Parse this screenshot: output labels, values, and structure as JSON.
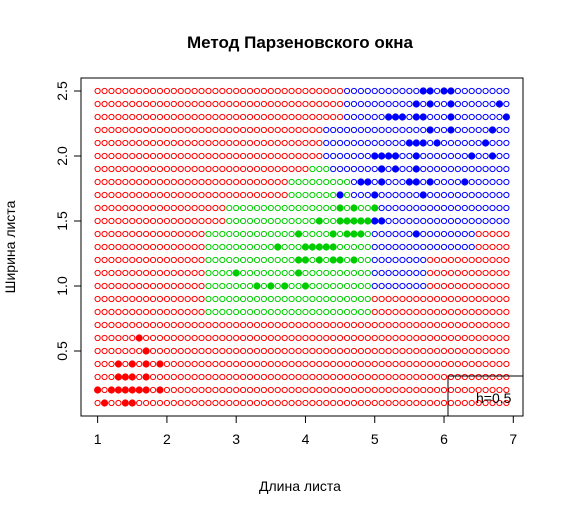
{
  "chart_data": {
    "type": "scatter",
    "title": "Метод Парзеновского окна",
    "xlabel": "Длина листа",
    "ylabel": "Ширина листа",
    "xlim": [
      0.76,
      7.14
    ],
    "ylim": [
      0.0,
      2.6
    ],
    "xticks": [
      "1",
      "2",
      "3",
      "4",
      "5",
      "6",
      "7"
    ],
    "yticks": [
      "0.5",
      "1.0",
      "1.5",
      "2.0",
      "2.5"
    ],
    "grid": false,
    "legend": {
      "position": "bottom-right",
      "text": "h=0.5"
    },
    "colors": {
      "setosa": "#ff0000",
      "versicolor": "#00cd00",
      "virginica": "#0000ff"
    },
    "classification_grid": {
      "x_start": 1.0,
      "x_step": 0.1,
      "x_count": 60,
      "y_start": 0.1,
      "y_step": 0.1,
      "y_count": 25,
      "point_style": "open-circle",
      "regions": [
        {
          "class": "versicolor",
          "y_from": 0.8,
          "y_to": 1.0,
          "x_from": 3.0,
          "x_to": 4.4
        },
        {
          "class": "versicolor",
          "y_from": 0.8,
          "y_to": 1.0,
          "x_from": 2.6,
          "x_to": 4.9
        },
        {
          "class": "versicolor",
          "y_from": 1.1,
          "y_to": 1.4,
          "x_from": 2.6,
          "x_to": 4.3
        },
        {
          "class": "versicolor",
          "y_from": 1.5,
          "y_to": 1.6,
          "x_from": 2.9,
          "x_to": 4.3
        },
        {
          "class": "versicolor",
          "y_from": 1.7,
          "y_to": 1.8,
          "x_from": 3.8,
          "x_to": 4.3
        },
        {
          "class": "versicolor",
          "y_from": 1.9,
          "y_to": 1.9,
          "x_from": 4.1,
          "x_to": 4.3
        },
        {
          "class": "versicolor",
          "y_from": 1.0,
          "y_to": 1.4,
          "x_from": 4.4,
          "x_to": 4.9
        },
        {
          "class": "versicolor",
          "y_from": 1.5,
          "y_to": 1.6,
          "x_from": 4.4,
          "x_to": 4.9
        },
        {
          "class": "versicolor",
          "y_from": 1.7,
          "y_to": 1.8,
          "x_from": 4.4,
          "x_to": 4.6
        },
        {
          "class": "virginica",
          "y_from": 1.0,
          "y_to": 1.4,
          "x_from": 5.0,
          "x_to": 5.7
        },
        {
          "class": "virginica",
          "y_from": 1.3,
          "y_to": 1.4,
          "x_from": 5.0,
          "x_to": 6.4
        },
        {
          "class": "virginica",
          "y_from": 1.5,
          "y_to": 1.9,
          "x_from": 5.0,
          "x_to": 6.9
        },
        {
          "class": "virginica",
          "y_from": 1.7,
          "y_to": 1.8,
          "x_from": 4.7,
          "x_to": 4.9
        },
        {
          "class": "virginica",
          "y_from": 1.9,
          "y_to": 1.9,
          "x_from": 4.4,
          "x_to": 4.9
        },
        {
          "class": "virginica",
          "y_from": 2.0,
          "y_to": 2.2,
          "x_from": 4.3,
          "x_to": 6.9
        },
        {
          "class": "virginica",
          "y_from": 2.3,
          "y_to": 2.5,
          "x_from": 4.6,
          "x_to": 6.9
        }
      ]
    },
    "training_points": [
      {
        "class": "setosa",
        "x": 1.1,
        "y": 0.1
      },
      {
        "class": "setosa",
        "x": 1.4,
        "y": 0.1
      },
      {
        "class": "setosa",
        "x": 1.5,
        "y": 0.1
      },
      {
        "class": "setosa",
        "x": 1.0,
        "y": 0.2
      },
      {
        "class": "setosa",
        "x": 1.2,
        "y": 0.2
      },
      {
        "class": "setosa",
        "x": 1.3,
        "y": 0.2
      },
      {
        "class": "setosa",
        "x": 1.4,
        "y": 0.2
      },
      {
        "class": "setosa",
        "x": 1.5,
        "y": 0.2
      },
      {
        "class": "setosa",
        "x": 1.6,
        "y": 0.2
      },
      {
        "class": "setosa",
        "x": 1.7,
        "y": 0.2
      },
      {
        "class": "setosa",
        "x": 1.9,
        "y": 0.2
      },
      {
        "class": "setosa",
        "x": 1.3,
        "y": 0.3
      },
      {
        "class": "setosa",
        "x": 1.4,
        "y": 0.3
      },
      {
        "class": "setosa",
        "x": 1.5,
        "y": 0.3
      },
      {
        "class": "setosa",
        "x": 1.7,
        "y": 0.3
      },
      {
        "class": "setosa",
        "x": 1.3,
        "y": 0.4
      },
      {
        "class": "setosa",
        "x": 1.5,
        "y": 0.4
      },
      {
        "class": "setosa",
        "x": 1.7,
        "y": 0.4
      },
      {
        "class": "setosa",
        "x": 1.9,
        "y": 0.4
      },
      {
        "class": "setosa",
        "x": 1.7,
        "y": 0.5
      },
      {
        "class": "setosa",
        "x": 1.6,
        "y": 0.6
      },
      {
        "class": "versicolor",
        "x": 3.0,
        "y": 1.1
      },
      {
        "class": "versicolor",
        "x": 3.3,
        "y": 1.0
      },
      {
        "class": "versicolor",
        "x": 3.5,
        "y": 1.0
      },
      {
        "class": "versicolor",
        "x": 3.7,
        "y": 1.0
      },
      {
        "class": "versicolor",
        "x": 4.0,
        "y": 1.0
      },
      {
        "class": "versicolor",
        "x": 3.9,
        "y": 1.1
      },
      {
        "class": "versicolor",
        "x": 3.6,
        "y": 1.3
      },
      {
        "class": "versicolor",
        "x": 3.9,
        "y": 1.2
      },
      {
        "class": "versicolor",
        "x": 4.0,
        "y": 1.3
      },
      {
        "class": "versicolor",
        "x": 4.1,
        "y": 1.3
      },
      {
        "class": "versicolor",
        "x": 4.2,
        "y": 1.3
      },
      {
        "class": "versicolor",
        "x": 4.3,
        "y": 1.3
      },
      {
        "class": "versicolor",
        "x": 4.4,
        "y": 1.3
      },
      {
        "class": "versicolor",
        "x": 4.0,
        "y": 1.2
      },
      {
        "class": "versicolor",
        "x": 4.2,
        "y": 1.2
      },
      {
        "class": "versicolor",
        "x": 4.4,
        "y": 1.2
      },
      {
        "class": "versicolor",
        "x": 4.5,
        "y": 1.2
      },
      {
        "class": "versicolor",
        "x": 4.7,
        "y": 1.2
      },
      {
        "class": "versicolor",
        "x": 3.9,
        "y": 1.4
      },
      {
        "class": "versicolor",
        "x": 4.4,
        "y": 1.4
      },
      {
        "class": "versicolor",
        "x": 4.6,
        "y": 1.4
      },
      {
        "class": "versicolor",
        "x": 4.7,
        "y": 1.4
      },
      {
        "class": "versicolor",
        "x": 4.2,
        "y": 1.5
      },
      {
        "class": "versicolor",
        "x": 4.5,
        "y": 1.5
      },
      {
        "class": "versicolor",
        "x": 4.6,
        "y": 1.5
      },
      {
        "class": "versicolor",
        "x": 4.7,
        "y": 1.5
      },
      {
        "class": "versicolor",
        "x": 4.9,
        "y": 1.5
      },
      {
        "class": "versicolor",
        "x": 4.5,
        "y": 1.6
      },
      {
        "class": "versicolor",
        "x": 4.7,
        "y": 1.6
      },
      {
        "class": "versicolor",
        "x": 5.0,
        "y": 1.6
      },
      {
        "class": "versicolor",
        "x": 4.8,
        "y": 1.5
      },
      {
        "class": "versicolor",
        "x": 4.8,
        "y": 1.4
      },
      {
        "class": "virginica",
        "x": 4.5,
        "y": 1.7
      },
      {
        "class": "virginica",
        "x": 4.8,
        "y": 1.8
      },
      {
        "class": "virginica",
        "x": 4.9,
        "y": 1.8
      },
      {
        "class": "virginica",
        "x": 5.1,
        "y": 1.9
      },
      {
        "class": "virginica",
        "x": 5.3,
        "y": 1.9
      },
      {
        "class": "virginica",
        "x": 5.0,
        "y": 1.7
      },
      {
        "class": "virginica",
        "x": 5.1,
        "y": 1.8
      },
      {
        "class": "virginica",
        "x": 5.5,
        "y": 1.8
      },
      {
        "class": "virginica",
        "x": 5.6,
        "y": 1.8
      },
      {
        "class": "virginica",
        "x": 5.8,
        "y": 1.8
      },
      {
        "class": "virginica",
        "x": 6.3,
        "y": 1.8
      },
      {
        "class": "virginica",
        "x": 5.6,
        "y": 1.4
      },
      {
        "class": "virginica",
        "x": 5.0,
        "y": 1.5
      },
      {
        "class": "virginica",
        "x": 5.1,
        "y": 1.5
      },
      {
        "class": "virginica",
        "x": 5.7,
        "y": 1.7
      },
      {
        "class": "virginica",
        "x": 5.0,
        "y": 2.0
      },
      {
        "class": "virginica",
        "x": 5.1,
        "y": 2.0
      },
      {
        "class": "virginica",
        "x": 5.2,
        "y": 2.0
      },
      {
        "class": "virginica",
        "x": 5.3,
        "y": 2.0
      },
      {
        "class": "virginica",
        "x": 5.6,
        "y": 2.0
      },
      {
        "class": "virginica",
        "x": 6.4,
        "y": 2.0
      },
      {
        "class": "virginica",
        "x": 6.7,
        "y": 2.0
      },
      {
        "class": "virginica",
        "x": 5.1,
        "y": 1.9
      },
      {
        "class": "virginica",
        "x": 5.6,
        "y": 1.9
      },
      {
        "class": "virginica",
        "x": 5.7,
        "y": 2.1
      },
      {
        "class": "virginica",
        "x": 5.6,
        "y": 2.1
      },
      {
        "class": "virginica",
        "x": 5.9,
        "y": 2.1
      },
      {
        "class": "virginica",
        "x": 6.6,
        "y": 2.1
      },
      {
        "class": "virginica",
        "x": 5.8,
        "y": 2.2
      },
      {
        "class": "virginica",
        "x": 6.1,
        "y": 2.2
      },
      {
        "class": "virginica",
        "x": 6.7,
        "y": 2.2
      },
      {
        "class": "virginica",
        "x": 5.5,
        "y": 2.1
      },
      {
        "class": "virginica",
        "x": 5.2,
        "y": 2.3
      },
      {
        "class": "virginica",
        "x": 5.3,
        "y": 2.3
      },
      {
        "class": "virginica",
        "x": 5.4,
        "y": 2.3
      },
      {
        "class": "virginica",
        "x": 5.6,
        "y": 2.3
      },
      {
        "class": "virginica",
        "x": 5.7,
        "y": 2.3
      },
      {
        "class": "virginica",
        "x": 6.1,
        "y": 2.3
      },
      {
        "class": "virginica",
        "x": 6.9,
        "y": 2.3
      },
      {
        "class": "virginica",
        "x": 5.6,
        "y": 2.4
      },
      {
        "class": "virginica",
        "x": 5.8,
        "y": 2.4
      },
      {
        "class": "virginica",
        "x": 6.1,
        "y": 2.4
      },
      {
        "class": "virginica",
        "x": 6.8,
        "y": 2.4
      },
      {
        "class": "virginica",
        "x": 5.7,
        "y": 2.5
      },
      {
        "class": "virginica",
        "x": 5.8,
        "y": 2.5
      },
      {
        "class": "virginica",
        "x": 6.0,
        "y": 2.5
      },
      {
        "class": "virginica",
        "x": 6.1,
        "y": 2.5
      }
    ]
  }
}
